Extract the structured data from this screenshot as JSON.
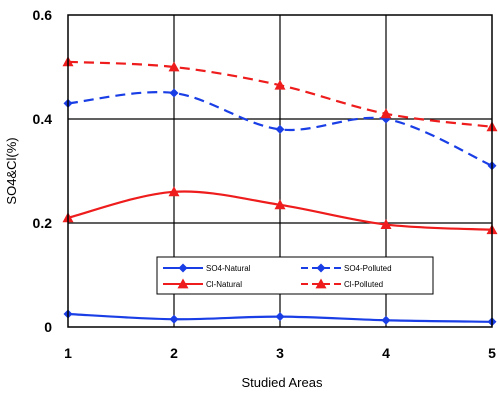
{
  "chart_data": {
    "type": "line",
    "title": "",
    "xlabel": "Studied Areas",
    "ylabel": "SO4&Cl(%)",
    "x": [
      1,
      2,
      3,
      4,
      5
    ],
    "xlim": [
      1,
      5
    ],
    "ylim": [
      0,
      0.6
    ],
    "x_ticks": [
      "1",
      "2",
      "3",
      "4",
      "5"
    ],
    "y_ticks": [
      "0",
      "0.2",
      "0.4",
      "0.6"
    ],
    "grid": true,
    "legend_placement": "lower-center",
    "series": [
      {
        "name": "SO4-Natural",
        "values": [
          0.025,
          0.015,
          0.02,
          0.013,
          0.01
        ],
        "color": "#1a3ee6",
        "marker": "diamond",
        "dashed": false
      },
      {
        "name": "SO4-Polluted",
        "values": [
          0.43,
          0.45,
          0.38,
          0.4,
          0.31
        ],
        "color": "#1a3ee6",
        "marker": "diamond",
        "dashed": true
      },
      {
        "name": "Cl-Natural",
        "values": [
          0.21,
          0.26,
          0.235,
          0.197,
          0.187
        ],
        "color": "#ee1c1c",
        "marker": "triangle",
        "dashed": false
      },
      {
        "name": "Cl-Polluted",
        "values": [
          0.51,
          0.5,
          0.465,
          0.41,
          0.385
        ],
        "color": "#ee1c1c",
        "marker": "triangle",
        "dashed": true
      }
    ]
  }
}
